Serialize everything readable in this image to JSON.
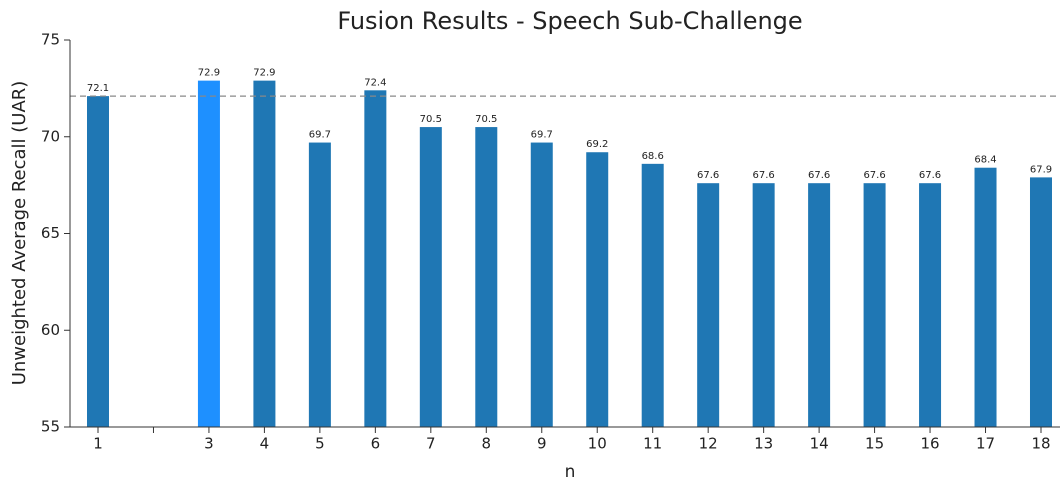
{
  "chart_data": {
    "type": "bar",
    "title": "Fusion Results - Speech Sub-Challenge",
    "xlabel": "n",
    "ylabel": "Unweighted Average Recall (UAR)",
    "categories": [
      "1",
      null,
      "3",
      "4",
      "5",
      "6",
      "7",
      "8",
      "9",
      "10",
      "11",
      "12",
      "13",
      "14",
      "15",
      "16",
      "17",
      "18"
    ],
    "values": [
      72.1,
      null,
      72.9,
      72.9,
      69.7,
      72.4,
      70.5,
      70.5,
      69.7,
      69.2,
      68.6,
      67.6,
      67.6,
      67.6,
      67.6,
      67.6,
      68.4,
      67.9
    ],
    "colors": [
      "#1f77b4",
      "#1f77b4",
      "#1e90ff",
      "#1f77b4",
      "#1f77b4",
      "#1f77b4",
      "#1f77b4",
      "#1f77b4",
      "#1f77b4",
      "#1f77b4",
      "#1f77b4",
      "#1f77b4",
      "#1f77b4",
      "#1f77b4",
      "#1f77b4",
      "#1f77b4",
      "#1f77b4",
      "#1f77b4"
    ],
    "reference_line": 72.1,
    "ylim": [
      55,
      75
    ],
    "yticks": [
      55,
      60,
      65,
      70,
      75
    ]
  }
}
